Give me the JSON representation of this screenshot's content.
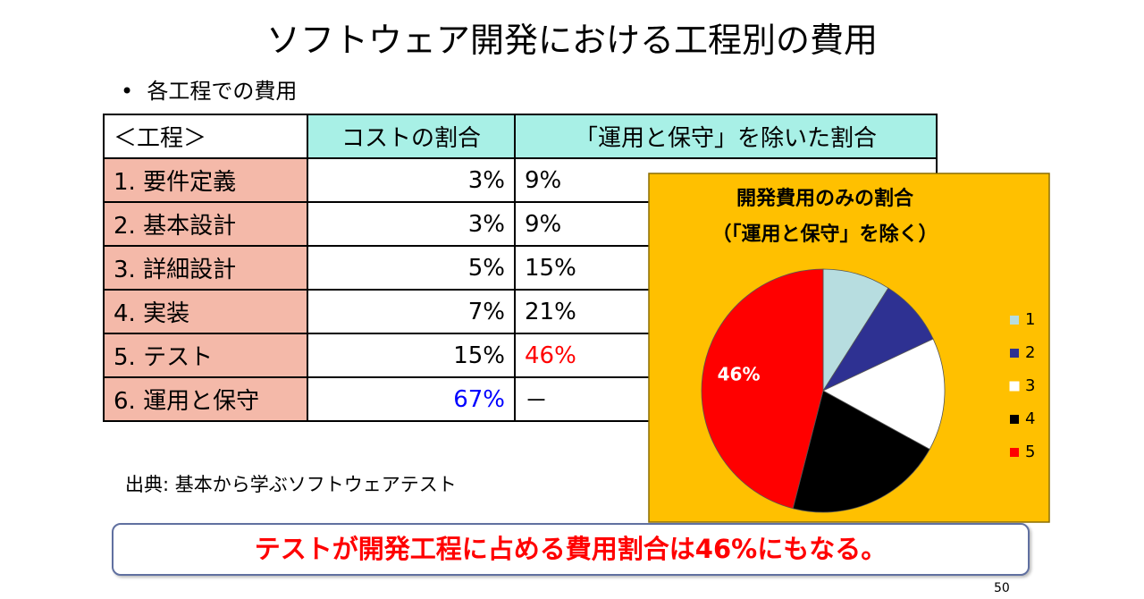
{
  "header": {
    "title": "ソフトウェア開発における工程別の費用",
    "bullet": "各工程での費用"
  },
  "table": {
    "header": [
      "＜工程＞",
      "コストの割合",
      "「運用と保守」を除いた割合"
    ],
    "rows": [
      [
        "1. 要件定義",
        "3%",
        "9%"
      ],
      [
        "2. 基本設計",
        "3%",
        "9%"
      ],
      [
        "3. 詳細設計",
        "5%",
        "15%"
      ],
      [
        "4.  実装",
        "7%",
        "21%"
      ],
      [
        "5. テスト",
        "15%",
        "46%"
      ],
      [
        "6. 運用と保守",
        "67%",
        "－"
      ]
    ]
  },
  "source": "出典: 基本から学ぶソフトウェアテスト",
  "chart_data": {
    "type": "pie",
    "title": "開発費用のみの割合",
    "subtitle": "（「運用と保守」を除く）",
    "categories": [
      "1",
      "2",
      "3",
      "4",
      "5"
    ],
    "values": [
      9,
      9,
      15,
      21,
      46
    ],
    "value_labels": [
      null,
      null,
      null,
      null,
      "46%"
    ],
    "colors": [
      "#b7dde0",
      "#2e3192",
      "#ffffff",
      "#000000",
      "#ff0000"
    ],
    "background": "#ffc000"
  },
  "callout": "テストが開発工程に占める費用割合は46%にもなる。",
  "page_number": "50"
}
